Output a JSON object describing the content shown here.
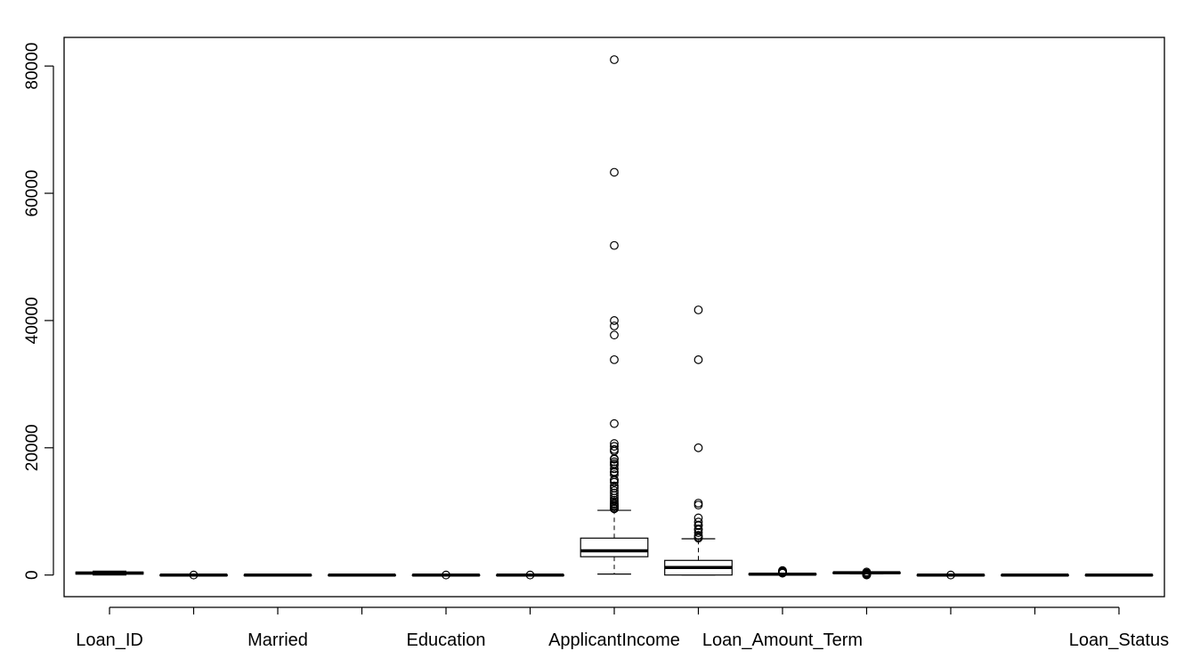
{
  "chart_data": {
    "type": "boxplot",
    "title": "",
    "xlabel": "",
    "ylabel": "",
    "ylim": [
      -3400,
      84500
    ],
    "yticks": [
      0,
      20000,
      40000,
      60000,
      80000
    ],
    "ytick_labels": [
      "0",
      "20000",
      "40000",
      "60000",
      "80000"
    ],
    "grid": false,
    "categories": [
      "Loan_ID",
      "",
      "Married",
      "",
      "Education",
      "",
      "ApplicantIncome",
      "",
      "Loan_Amount_Term",
      "",
      "",
      "",
      "Loan_Status"
    ],
    "boxes": [
      {
        "min": 0,
        "q1": 150,
        "median": 305,
        "q3": 460,
        "max": 614,
        "outliers": []
      },
      {
        "min": 0,
        "q1": 0,
        "median": 0,
        "q3": 1,
        "max": 1,
        "outliers": [
          1
        ]
      },
      {
        "min": 0,
        "q1": 0,
        "median": 1,
        "q3": 1,
        "max": 1,
        "outliers": []
      },
      {
        "min": 0,
        "q1": 0,
        "median": 0,
        "q3": 1,
        "max": 2,
        "outliers": []
      },
      {
        "min": 0,
        "q1": 0,
        "median": 0,
        "q3": 0,
        "max": 1,
        "outliers": [
          1
        ]
      },
      {
        "min": 0,
        "q1": 0,
        "median": 0,
        "q3": 0,
        "max": 1,
        "outliers": [
          1
        ]
      },
      {
        "min": 150,
        "q1": 2880,
        "median": 3810,
        "q3": 5800,
        "max": 10170,
        "outliers": [
          81000,
          63300,
          51800,
          39999,
          39150,
          37720,
          33850,
          23800,
          20670,
          20230,
          19730,
          19480,
          18300,
          18200,
          17800,
          17500,
          17260,
          16700,
          16250,
          16120,
          15760,
          15000,
          14880,
          14580,
          14000,
          13650,
          13260,
          12880,
          12500,
          12100,
          11760,
          11500,
          11250,
          11140,
          10920,
          10830,
          10750,
          10500,
          10440,
          10410
        ]
      },
      {
        "min": 0,
        "q1": 0,
        "median": 1190,
        "q3": 2300,
        "max": 5700,
        "outliers": [
          41670,
          33840,
          20000,
          11300,
          11000,
          8980,
          8330,
          7870,
          7760,
          7250,
          7100,
          6670,
          6250,
          6000,
          5800
        ]
      },
      {
        "min": 9,
        "q1": 100,
        "median": 128,
        "q3": 168,
        "max": 270,
        "outliers": [
          700,
          650,
          600,
          570,
          496,
          480,
          400,
          350,
          320,
          300
        ]
      },
      {
        "min": 180,
        "q1": 360,
        "median": 360,
        "q3": 360,
        "max": 480,
        "outliers": [
          12,
          36,
          60,
          84,
          120,
          180,
          240,
          300,
          480
        ]
      },
      {
        "min": 0,
        "q1": 1,
        "median": 1,
        "q3": 1,
        "max": 1,
        "outliers": [
          0
        ]
      },
      {
        "min": 0,
        "q1": 0,
        "median": 1,
        "q3": 2,
        "max": 2,
        "outliers": []
      },
      {
        "min": 0,
        "q1": 0,
        "median": 1,
        "q3": 1,
        "max": 1,
        "outliers": []
      }
    ]
  }
}
